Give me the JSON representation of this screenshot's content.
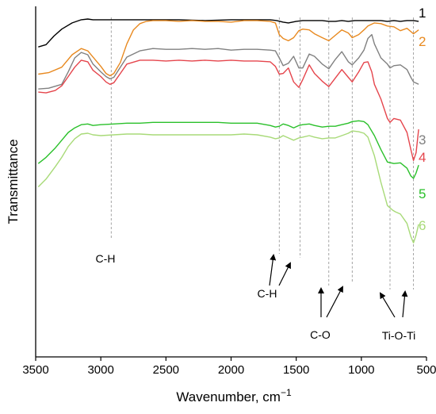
{
  "chart_data": {
    "type": "line",
    "title": "",
    "xlabel": "Wavenumber, cm",
    "xlabel_sup": "−1",
    "ylabel": "Transmittance",
    "xlim": [
      3500,
      500
    ],
    "x_reversed": true,
    "y_ticks_shown": false,
    "xticks": [
      3500,
      3000,
      2500,
      2000,
      1500,
      1000,
      500
    ],
    "xtick_labels": [
      "3500",
      "3000",
      "2500",
      "2000",
      "1500",
      "1000",
      "500"
    ],
    "grid": false,
    "reference_lines": [
      2920,
      1630,
      1470,
      1250,
      1070,
      780,
      600
    ],
    "series": [
      {
        "name": "1",
        "color": "#000000",
        "x": [
          3480,
          3420,
          3360,
          3300,
          3220,
          3150,
          3100,
          3060,
          3000,
          2950,
          2900,
          2800,
          2600,
          2400,
          2200,
          2000,
          1800,
          1700,
          1650,
          1600,
          1560,
          1500,
          1450,
          1380,
          1300,
          1250,
          1200,
          1150,
          1100,
          1050,
          1000,
          950,
          900,
          850,
          800,
          750,
          700,
          650,
          600,
          560
        ],
        "y": [
          62,
          65,
          76,
          85,
          93,
          97,
          98,
          97,
          97,
          97,
          97,
          97,
          97,
          97,
          96,
          97,
          97,
          97,
          96,
          94,
          93,
          95,
          96,
          96,
          96,
          95,
          95,
          96,
          95,
          96,
          96,
          96,
          96,
          96,
          95,
          96,
          95,
          96,
          96,
          95
        ]
      },
      {
        "name": "2",
        "color": "#E8891F",
        "x": [
          3480,
          3400,
          3300,
          3220,
          3150,
          3100,
          3050,
          3000,
          2960,
          2930,
          2900,
          2850,
          2800,
          2750,
          2700,
          2650,
          2600,
          2500,
          2400,
          2300,
          2200,
          2100,
          2000,
          1900,
          1800,
          1700,
          1660,
          1630,
          1600,
          1560,
          1520,
          1480,
          1450,
          1400,
          1360,
          1300,
          1250,
          1200,
          1150,
          1100,
          1070,
          1020,
          980,
          950,
          900,
          850,
          800,
          750,
          700,
          650,
          600,
          560
        ],
        "y": [
          27,
          29,
          36,
          52,
          60,
          57,
          47,
          37,
          28,
          25,
          28,
          42,
          66,
          84,
          92,
          95,
          96,
          96,
          95,
          96,
          95,
          95,
          94,
          96,
          96,
          95,
          93,
          78,
          73,
          70,
          74,
          83,
          85,
          84,
          79,
          74,
          70,
          77,
          84,
          80,
          74,
          78,
          84,
          89,
          93,
          92,
          89,
          88,
          83,
          86,
          79,
          84
        ]
      },
      {
        "name": "3",
        "color": "#808080",
        "x": [
          3480,
          3400,
          3300,
          3250,
          3200,
          3150,
          3100,
          3060,
          3000,
          2960,
          2930,
          2900,
          2850,
          2800,
          2700,
          2600,
          2500,
          2400,
          2300,
          2200,
          2100,
          2000,
          1900,
          1800,
          1700,
          1660,
          1630,
          1600,
          1560,
          1520,
          1480,
          1450,
          1400,
          1360,
          1300,
          1250,
          1200,
          1150,
          1100,
          1070,
          1020,
          980,
          950,
          920,
          900,
          850,
          800,
          780,
          750,
          700,
          650,
          620,
          600,
          560
        ],
        "y": [
          8,
          9,
          14,
          30,
          48,
          55,
          52,
          40,
          30,
          24,
          21,
          23,
          36,
          49,
          57,
          60,
          59,
          59,
          60,
          59,
          60,
          58,
          59,
          59,
          58,
          57,
          48,
          38,
          41,
          50,
          35,
          35,
          53,
          50,
          40,
          34,
          46,
          56,
          43,
          39,
          48,
          58,
          73,
          78,
          66,
          48,
          40,
          35,
          38,
          39,
          33,
          23,
          17,
          14
        ]
      },
      {
        "name": "4",
        "color": "#E5454C",
        "x": [
          3480,
          3420,
          3350,
          3300,
          3250,
          3200,
          3150,
          3100,
          3060,
          3000,
          2960,
          2930,
          2900,
          2850,
          2800,
          2700,
          2600,
          2500,
          2400,
          2300,
          2200,
          2100,
          2000,
          1900,
          1800,
          1700,
          1660,
          1630,
          1600,
          1560,
          1520,
          1480,
          1450,
          1400,
          1360,
          1300,
          1250,
          1200,
          1150,
          1100,
          1070,
          1020,
          980,
          950,
          920,
          900,
          850,
          800,
          780,
          750,
          700,
          650,
          620,
          600,
          580,
          560
        ],
        "y": [
          4,
          3,
          6,
          12,
          24,
          36,
          45,
          43,
          32,
          24,
          17,
          14,
          16,
          28,
          40,
          45,
          45,
          44,
          45,
          44,
          45,
          44,
          45,
          44,
          44,
          43,
          37,
          27,
          28,
          35,
          17,
          10,
          20,
          39,
          28,
          18,
          11,
          22,
          33,
          23,
          17,
          30,
          42,
          43,
          30,
          14,
          -5,
          -30,
          -35,
          -30,
          -32,
          -48,
          -70,
          -84,
          -74,
          -44
        ]
      },
      {
        "name": "5",
        "color": "#2AC02A",
        "x": [
          3480,
          3420,
          3350,
          3300,
          3250,
          3200,
          3150,
          3100,
          3060,
          3000,
          2900,
          2800,
          2700,
          2600,
          2500,
          2400,
          2300,
          2200,
          2100,
          2000,
          1900,
          1800,
          1700,
          1660,
          1630,
          1600,
          1560,
          1520,
          1480,
          1450,
          1400,
          1360,
          1300,
          1250,
          1200,
          1150,
          1100,
          1070,
          1020,
          980,
          950,
          900,
          850,
          800,
          750,
          700,
          650,
          620,
          600,
          580,
          560
        ],
        "y": [
          -88,
          -80,
          -68,
          -58,
          -48,
          -42,
          -38,
          -37,
          -39,
          -38,
          -37,
          -36,
          -36,
          -35,
          -35,
          -35,
          -35,
          -35,
          -35,
          -36,
          -36,
          -36,
          -39,
          -41,
          -40,
          -37,
          -39,
          -42,
          -39,
          -38,
          -37,
          -39,
          -41,
          -40,
          -40,
          -38,
          -36,
          -34,
          -33,
          -34,
          -38,
          -52,
          -70,
          -86,
          -88,
          -87,
          -94,
          -104,
          -107,
          -100,
          -90
        ]
      },
      {
        "name": "6",
        "color": "#A8DA78",
        "x": [
          3480,
          3420,
          3350,
          3300,
          3250,
          3200,
          3150,
          3100,
          3060,
          3000,
          2900,
          2800,
          2700,
          2600,
          2500,
          2400,
          2300,
          2200,
          2100,
          2000,
          1900,
          1800,
          1700,
          1660,
          1630,
          1600,
          1560,
          1520,
          1480,
          1450,
          1400,
          1360,
          1300,
          1250,
          1200,
          1150,
          1100,
          1070,
          1020,
          980,
          950,
          900,
          850,
          800,
          760,
          740,
          700,
          650,
          620,
          600,
          580,
          560
        ],
        "y": [
          -118,
          -108,
          -92,
          -80,
          -66,
          -56,
          -50,
          -49,
          -51,
          -52,
          -51,
          -50,
          -50,
          -51,
          -51,
          -51,
          -51,
          -51,
          -51,
          -51,
          -50,
          -51,
          -54,
          -56,
          -55,
          -52,
          -55,
          -58,
          -55,
          -54,
          -52,
          -54,
          -56,
          -55,
          -55,
          -52,
          -49,
          -46,
          -47,
          -49,
          -54,
          -78,
          -112,
          -142,
          -148,
          -150,
          -153,
          -165,
          -182,
          -190,
          -180,
          -166
        ]
      }
    ],
    "annotations": [
      {
        "text": "C-H",
        "x": 2920
      },
      {
        "text": "C-H",
        "x": 1550
      },
      {
        "text": "C-O",
        "x": 1160
      },
      {
        "text": "Ti-O-Ti",
        "x": 690
      }
    ]
  }
}
